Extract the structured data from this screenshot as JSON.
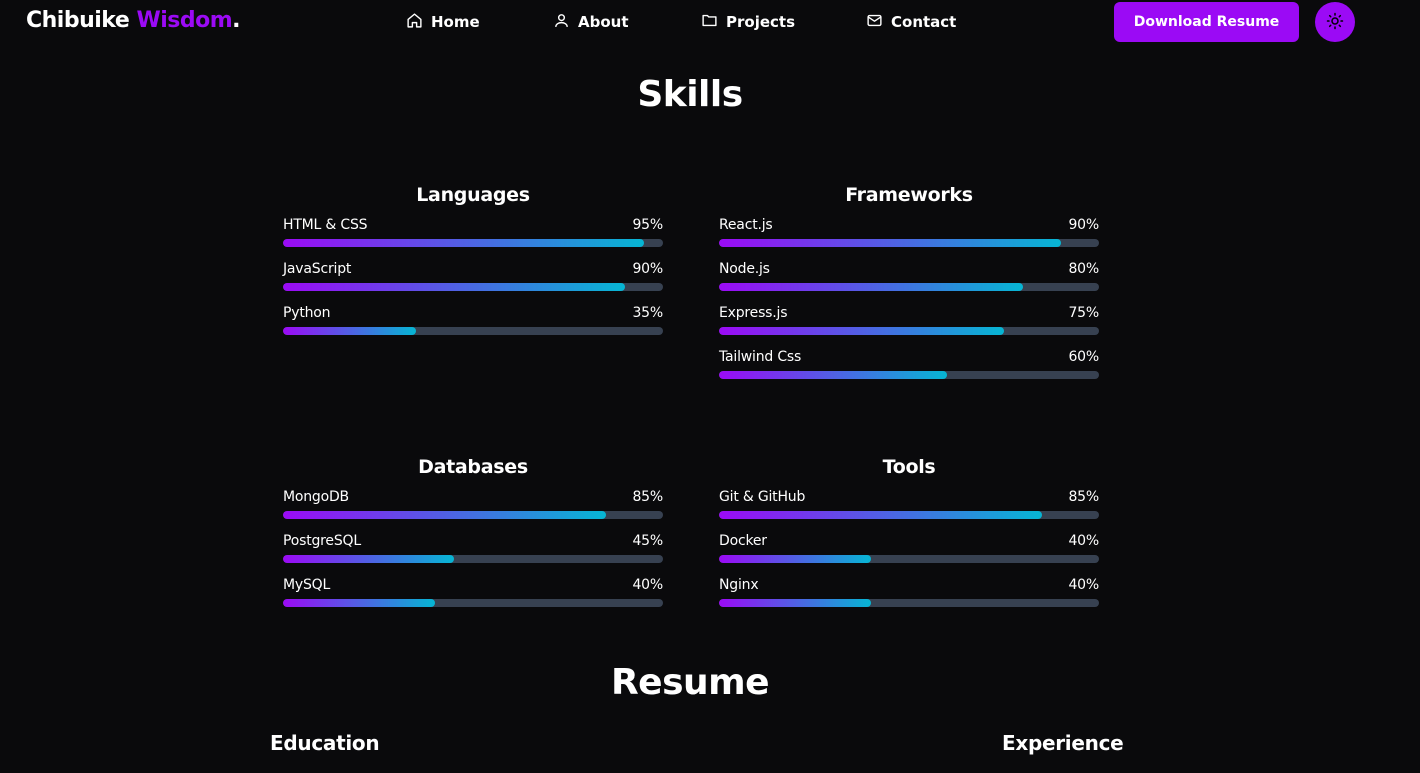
{
  "header": {
    "logo_first": "Chibuike",
    "logo_second": "Wisdom",
    "logo_dot": ".",
    "nav": [
      {
        "label": "Home",
        "icon": "home-icon"
      },
      {
        "label": "About",
        "icon": "user-icon"
      },
      {
        "label": "Projects",
        "icon": "folder-icon"
      },
      {
        "label": "Contact",
        "icon": "mail-icon"
      }
    ],
    "download_label": "Download Resume",
    "theme_icon": "sun-icon"
  },
  "colors": {
    "accent": "#9b0af5",
    "gradient_end": "#06b6d4",
    "track": "#374151",
    "background": "#0a0a0c"
  },
  "skills": {
    "title": "Skills",
    "groups": [
      {
        "name": "Languages",
        "items": [
          {
            "name": "HTML & CSS",
            "percent": 95,
            "label": "95%"
          },
          {
            "name": "JavaScript",
            "percent": 90,
            "label": "90%"
          },
          {
            "name": "Python",
            "percent": 35,
            "label": "35%"
          }
        ]
      },
      {
        "name": "Frameworks",
        "items": [
          {
            "name": "React.js",
            "percent": 90,
            "label": "90%"
          },
          {
            "name": "Node.js",
            "percent": 80,
            "label": "80%"
          },
          {
            "name": "Express.js",
            "percent": 75,
            "label": "75%"
          },
          {
            "name": "Tailwind Css",
            "percent": 60,
            "label": "60%"
          }
        ]
      },
      {
        "name": "Databases",
        "items": [
          {
            "name": "MongoDB",
            "percent": 85,
            "label": "85%"
          },
          {
            "name": "PostgreSQL",
            "percent": 45,
            "label": "45%"
          },
          {
            "name": "MySQL",
            "percent": 40,
            "label": "40%"
          }
        ]
      },
      {
        "name": "Tools",
        "items": [
          {
            "name": "Git & GitHub",
            "percent": 85,
            "label": "85%"
          },
          {
            "name": "Docker",
            "percent": 40,
            "label": "40%"
          },
          {
            "name": "Nginx",
            "percent": 40,
            "label": "40%"
          }
        ]
      }
    ]
  },
  "resume": {
    "title": "Resume",
    "education_heading": "Education",
    "experience_heading": "Experience"
  }
}
